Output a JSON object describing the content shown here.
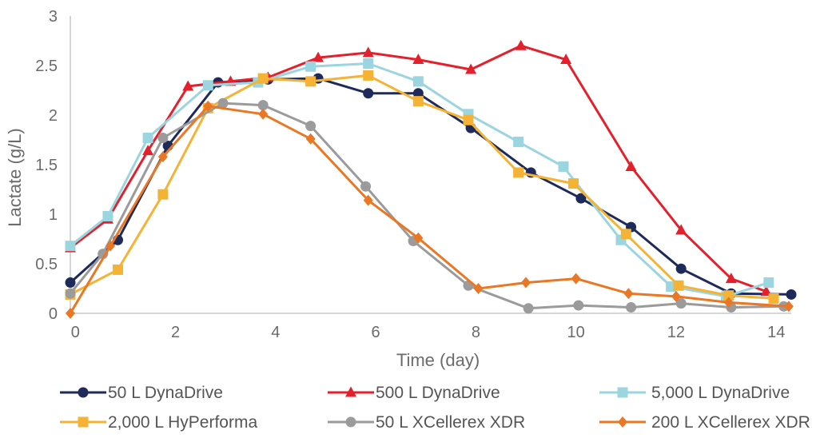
{
  "chart_data": {
    "type": "line",
    "title": "",
    "xlabel": "Time (day)",
    "ylabel": "Lactate (g/L)",
    "xlim": [
      -0.1,
      14.3
    ],
    "ylim": [
      0,
      3
    ],
    "xticks": [
      0,
      2,
      4,
      6,
      8,
      10,
      12,
      14
    ],
    "xtick_labels": [
      "0",
      "2",
      "4",
      "6",
      "8",
      "10",
      "12",
      "14"
    ],
    "yticks": [
      0,
      0.5,
      1,
      1.5,
      2,
      2.5,
      3
    ],
    "ytick_labels": [
      "0",
      "0.5",
      "1",
      "1.5",
      "2",
      "2.5",
      "3"
    ],
    "grid": false,
    "legend_position": "bottom",
    "series": [
      {
        "name": "50 L DynaDrive",
        "color": "#1e2a5a",
        "marker": "circle",
        "x": [
          -0.1,
          0.85,
          1.85,
          2.85,
          3.85,
          4.85,
          5.85,
          6.85,
          7.9,
          9.1,
          10.1,
          11.1,
          12.1,
          13.1,
          14.3
        ],
        "y": [
          0.31,
          0.74,
          1.69,
          2.33,
          2.36,
          2.37,
          2.22,
          2.22,
          1.87,
          1.42,
          1.16,
          0.87,
          0.45,
          0.2,
          0.19
        ]
      },
      {
        "name": "500 L DynaDrive",
        "color": "#e3202b",
        "marker": "triangle",
        "x": [
          -0.1,
          0.65,
          1.45,
          2.25,
          3.1,
          3.85,
          4.85,
          5.85,
          6.85,
          7.9,
          8.9,
          9.8,
          11.1,
          12.1,
          13.1,
          13.8
        ],
        "y": [
          0.66,
          0.95,
          1.64,
          2.29,
          2.34,
          2.38,
          2.58,
          2.63,
          2.56,
          2.46,
          2.7,
          2.56,
          1.48,
          0.84,
          0.35,
          0.22
        ]
      },
      {
        "name": "5,000 L DynaDrive",
        "color": "#9ad5e0",
        "marker": "square",
        "x": [
          -0.1,
          0.65,
          1.45,
          2.65,
          3.65,
          4.7,
          5.85,
          6.85,
          7.85,
          8.85,
          9.75,
          10.9,
          11.9,
          13.0,
          13.85
        ],
        "y": [
          0.68,
          0.98,
          1.77,
          2.3,
          2.33,
          2.49,
          2.52,
          2.34,
          2.01,
          1.73,
          1.48,
          0.74,
          0.27,
          0.17,
          0.31
        ]
      },
      {
        "name": "2,000 L HyPerforma",
        "color": "#f5b335",
        "marker": "square",
        "x": [
          -0.1,
          0.85,
          1.75,
          2.65,
          3.75,
          4.7,
          5.85,
          6.85,
          7.85,
          8.85,
          9.95,
          11.0,
          12.05,
          13.05,
          13.95
        ],
        "y": [
          0.19,
          0.44,
          1.2,
          2.07,
          2.37,
          2.34,
          2.4,
          2.14,
          1.95,
          1.42,
          1.31,
          0.8,
          0.28,
          0.18,
          0.15
        ]
      },
      {
        "name": "50 L XCellerex XDR",
        "color": "#9b9b9b",
        "marker": "circle",
        "x": [
          -0.1,
          0.55,
          1.75,
          2.95,
          3.75,
          4.7,
          5.8,
          6.75,
          7.85,
          9.05,
          10.05,
          11.1,
          12.1,
          13.1,
          14.15
        ],
        "y": [
          0.2,
          0.6,
          1.77,
          2.12,
          2.1,
          1.89,
          1.28,
          0.73,
          0.28,
          0.05,
          0.08,
          0.06,
          0.1,
          0.06,
          0.07
        ]
      },
      {
        "name": "200 L XCellerex XDR",
        "color": "#ea7723",
        "marker": "diamond",
        "x": [
          -0.1,
          0.7,
          1.75,
          2.65,
          3.75,
          4.7,
          5.85,
          6.85,
          8.05,
          9.0,
          10.0,
          11.05,
          12.0,
          13.05,
          14.25
        ],
        "y": [
          0.0,
          0.68,
          1.58,
          2.09,
          2.01,
          1.76,
          1.14,
          0.76,
          0.25,
          0.31,
          0.35,
          0.2,
          0.17,
          0.11,
          0.07
        ]
      }
    ]
  }
}
